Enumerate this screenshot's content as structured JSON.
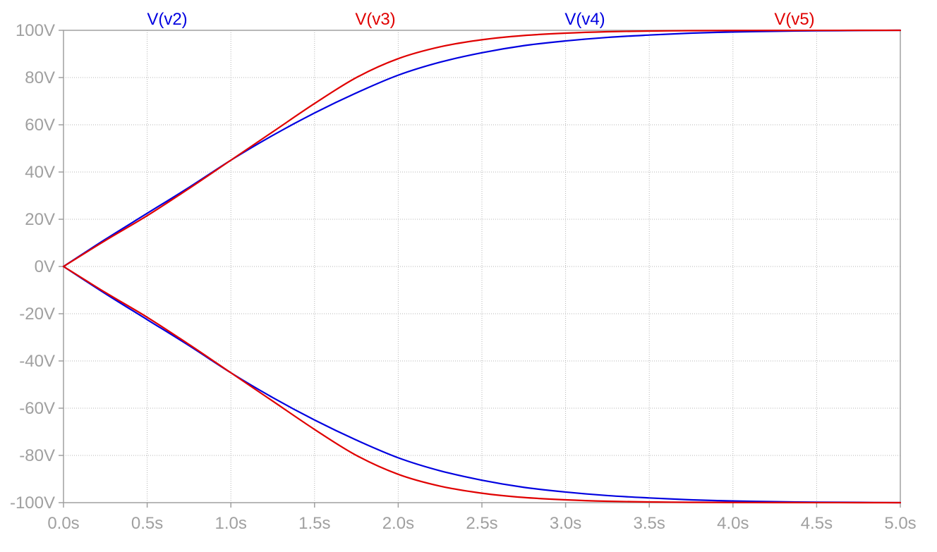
{
  "chart_data": {
    "type": "line",
    "x_ticks": [
      "0.0s",
      "0.5s",
      "1.0s",
      "1.5s",
      "2.0s",
      "2.5s",
      "3.0s",
      "3.5s",
      "4.0s",
      "4.5s",
      "5.0s"
    ],
    "y_ticks": [
      "100V",
      "80V",
      "60V",
      "40V",
      "20V",
      "0V",
      "-20V",
      "-40V",
      "-60V",
      "-80V",
      "-100V"
    ],
    "xlim": [
      0,
      5
    ],
    "ylim": [
      -100,
      100
    ],
    "x_unit": "s",
    "y_unit": "V",
    "grid": true,
    "legend_position": "top",
    "x": [
      0,
      0.25,
      0.5,
      0.75,
      1.0,
      1.25,
      1.5,
      1.75,
      2.0,
      2.25,
      2.5,
      2.75,
      3.0,
      3.25,
      3.5,
      3.75,
      4.0,
      4.25,
      4.5,
      4.75,
      5.0
    ],
    "series": [
      {
        "name": "V(v2)",
        "color": "#0000e0",
        "values": [
          0,
          11.5,
          22.5,
          33.5,
          45,
          55.5,
          65,
          73.5,
          81,
          86.5,
          90.5,
          93.5,
          95.5,
          97,
          98,
          98.8,
          99.3,
          99.6,
          99.8,
          99.9,
          100
        ]
      },
      {
        "name": "V(v3)",
        "color": "#e00000",
        "values": [
          0,
          11,
          21.5,
          33,
          45,
          57,
          69,
          80,
          88,
          93,
          96,
          97.8,
          98.8,
          99.4,
          99.7,
          99.85,
          99.92,
          99.96,
          99.98,
          99.99,
          100
        ]
      },
      {
        "name": "V(v4)",
        "color": "#0000e0",
        "values": [
          0,
          -11.5,
          -22.5,
          -33.5,
          -45,
          -55.5,
          -65,
          -73.5,
          -81,
          -86.5,
          -90.5,
          -93.5,
          -95.5,
          -97,
          -98,
          -98.8,
          -99.3,
          -99.6,
          -99.8,
          -99.9,
          -100
        ]
      },
      {
        "name": "V(v5)",
        "color": "#e00000",
        "values": [
          0,
          -11,
          -21.5,
          -33,
          -45,
          -57,
          -69,
          -80,
          -88,
          -93,
          -96,
          -97.8,
          -98.8,
          -99.4,
          -99.7,
          -99.85,
          -99.92,
          -99.96,
          -99.98,
          -99.99,
          -100
        ]
      }
    ]
  }
}
